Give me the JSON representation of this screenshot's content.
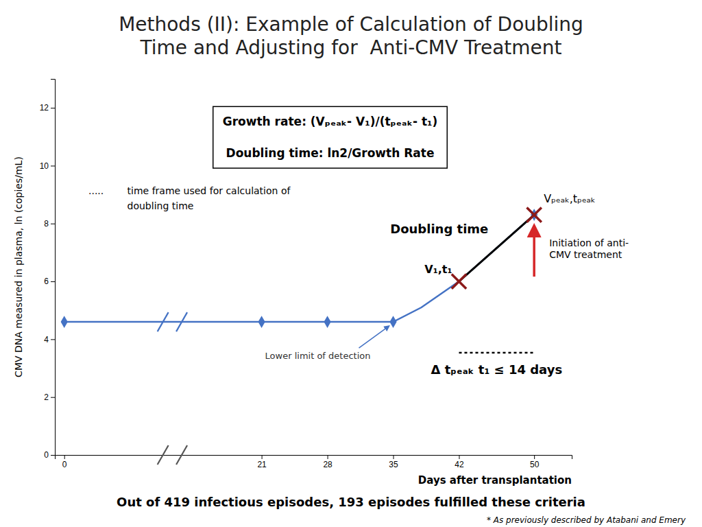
{
  "chart_data": {
    "type": "line",
    "title": "Methods (II): Example of Calculation of Doubling\nTime and Adjusting for  Anti-CMV Treatment",
    "x_label": "Days after transplantation",
    "y_label": "CMV DNA measured in plasma, ln (copies/mL)",
    "xlim": [
      -1,
      54
    ],
    "ylim": [
      0,
      13
    ],
    "xticks": [
      0,
      21,
      28,
      35,
      42,
      50
    ],
    "yticks": [
      0,
      2,
      4,
      6,
      8,
      10,
      12
    ],
    "grid": false,
    "x": [
      0,
      21,
      28,
      35,
      38,
      42,
      50
    ],
    "series": [
      {
        "type": "line",
        "line_style": "solid",
        "color": "#4472c4",
        "values": [
          4.6,
          4.6,
          4.6,
          4.6,
          5.1,
          6.0,
          8.3
        ]
      },
      {
        "type": "scatter",
        "marker": "diamond",
        "color": "#4472c4",
        "x": [
          0,
          21,
          28,
          35,
          50
        ],
        "values": [
          4.6,
          4.6,
          4.6,
          4.6,
          8.3
        ]
      },
      {
        "type": "line",
        "line_style": "solid",
        "color": "black",
        "x": [
          42,
          50
        ],
        "values": [
          6.0,
          8.3
        ]
      },
      {
        "type": "scatter",
        "marker": "x",
        "color": "#8b1a1a",
        "x": [
          42,
          50
        ],
        "values": [
          6.0,
          8.3
        ]
      }
    ],
    "axis_breaks": {
      "x": [
        10.5,
        12.5
      ],
      "y": [
        4.6,
        0.0
      ]
    },
    "annotations": {
      "formula": [
        "Growth rate: (Vₚₑₐₖ- V₁)/(tₚₑₐₖ- t₁)",
        "Doubling time: ln2/Growth Rate"
      ],
      "time_frame": [
        ".....",
        "time frame used for calculation of",
        "doubling time"
      ],
      "doubling_time": "Doubling time",
      "v1_label": "V₁,t₁",
      "vpeak_label": "Vₚₑₐₖ,tₚₑₐₖ",
      "treatment": "Initiation of anti-\nCMV treatment",
      "delta_t": "Δ tₚₑₐₖ t₁ ≤ 14 days",
      "lod": "Lower limit of detection"
    },
    "bottom_text": "Out of 419 infectious episodes, 193 episodes fulfilled these criteria",
    "footnote": "* As previously described by Atabani and Emery"
  }
}
